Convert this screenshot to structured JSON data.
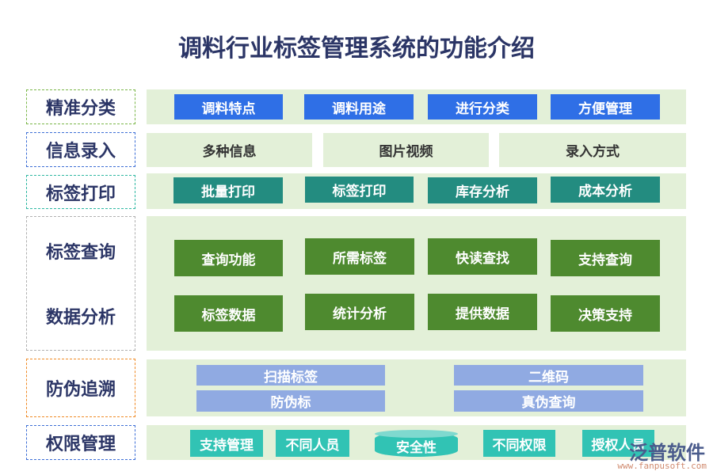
{
  "title": "调料行业标签管理系统的功能介绍",
  "rows": [
    {
      "label": "精准分类",
      "border": "#7ab648",
      "items": [
        "调料特点",
        "调料用途",
        "进行分类",
        "方便管理"
      ]
    },
    {
      "label": "信息录入",
      "border": "#3d6fd6",
      "items": [
        "多种信息",
        "图片视频",
        "录入方式"
      ]
    },
    {
      "label": "标签打印",
      "border": "#2fb8a2",
      "items": [
        "批量打印",
        "标签打印",
        "库存分析",
        "成本分析"
      ]
    },
    {
      "labels": [
        "标签查询",
        "数据分析"
      ],
      "border": "#b0b0b0",
      "items": [
        "查询功能",
        "所需标签",
        "快读查找",
        "支持查询",
        "标签数据",
        "统计分析",
        "提供数据",
        "决策支持"
      ]
    },
    {
      "label": "防伪追溯",
      "border": "#f08a24",
      "items": [
        "扫描标签",
        "二维码",
        "防伪标",
        "真伪查询"
      ]
    },
    {
      "label": "权限管理",
      "border": "#3d6fd6",
      "items": [
        "支持管理",
        "不同人员",
        "安全性",
        "不同权限",
        "授权人员"
      ]
    }
  ],
  "watermark": {
    "name": "泛普软件",
    "url": "www.fanpusoft.com"
  },
  "colors": {
    "blue": "#2f6fe6",
    "teal": "#238c80",
    "green": "#4e8a2f",
    "lavender": "#90aae2",
    "aqua": "#31c3b4",
    "panel": "#e3f0d8"
  }
}
